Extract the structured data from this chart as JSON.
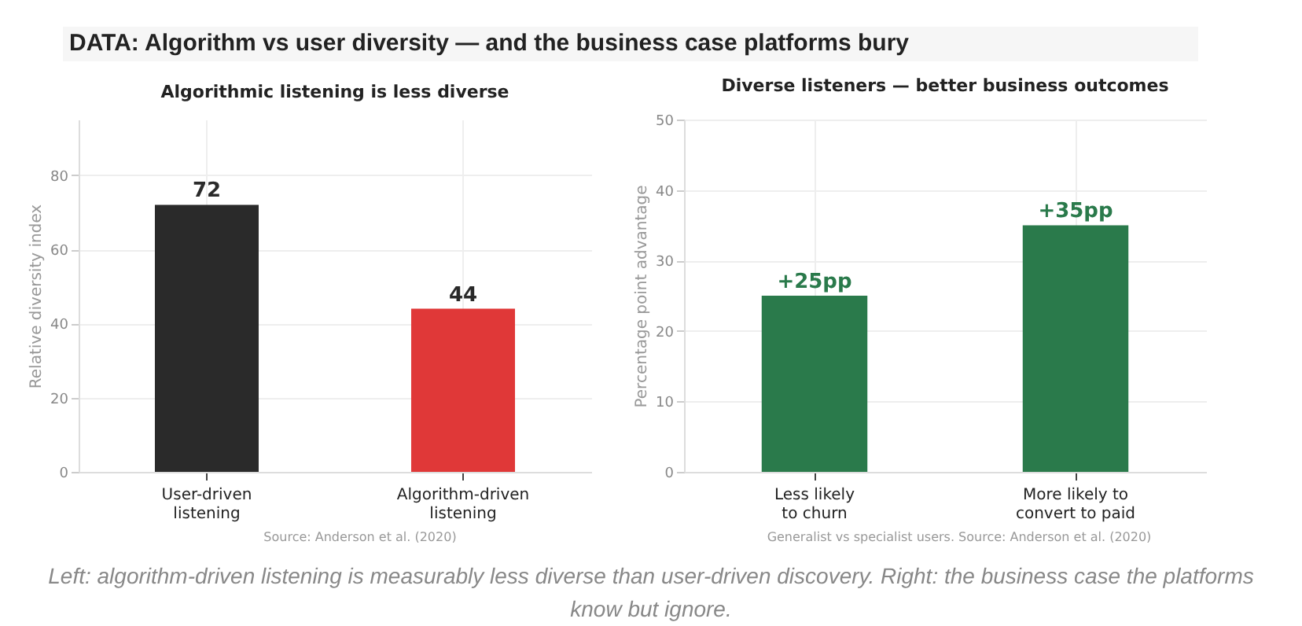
{
  "chart_data": [
    {
      "type": "bar",
      "title": "Algorithmic listening is less diverse",
      "ylabel": "Relative diversity index",
      "categories": [
        "User-driven\nlistening",
        "Algorithm-driven\nlistening"
      ],
      "values": [
        72,
        44
      ],
      "colors": [
        "#2a2a2a",
        "#e03838"
      ],
      "ylim": [
        0,
        95
      ],
      "yticks": [
        0,
        20,
        40,
        60,
        80
      ],
      "grid": true,
      "data_labels": true,
      "annotations": [
        "DATA: Algorithm vs user diversity — and the business case platforms bury",
        "Source: Anderson et al. (2020)"
      ]
    },
    {
      "type": "bar",
      "title": "Diverse listeners — better business outcomes",
      "ylabel": "Percentage point advantage",
      "categories": [
        "Less likely\nto churn",
        "More likely to\nconvert to paid"
      ],
      "values": [
        25,
        35
      ],
      "color": "#2a7a4b",
      "ylim": [
        0,
        50
      ],
      "yticks": [
        0,
        10,
        20,
        30,
        40,
        50
      ],
      "grid": true,
      "value_labels": [
        "+25pp",
        "+35pp"
      ],
      "annotations": [
        "Generalist vs specialist users. Source: Anderson et al. (2020)",
        "Left: algorithm-driven listening is measurably less diverse than user-driven discovery. Right: the business case the platforms know but ignore."
      ]
    }
  ]
}
